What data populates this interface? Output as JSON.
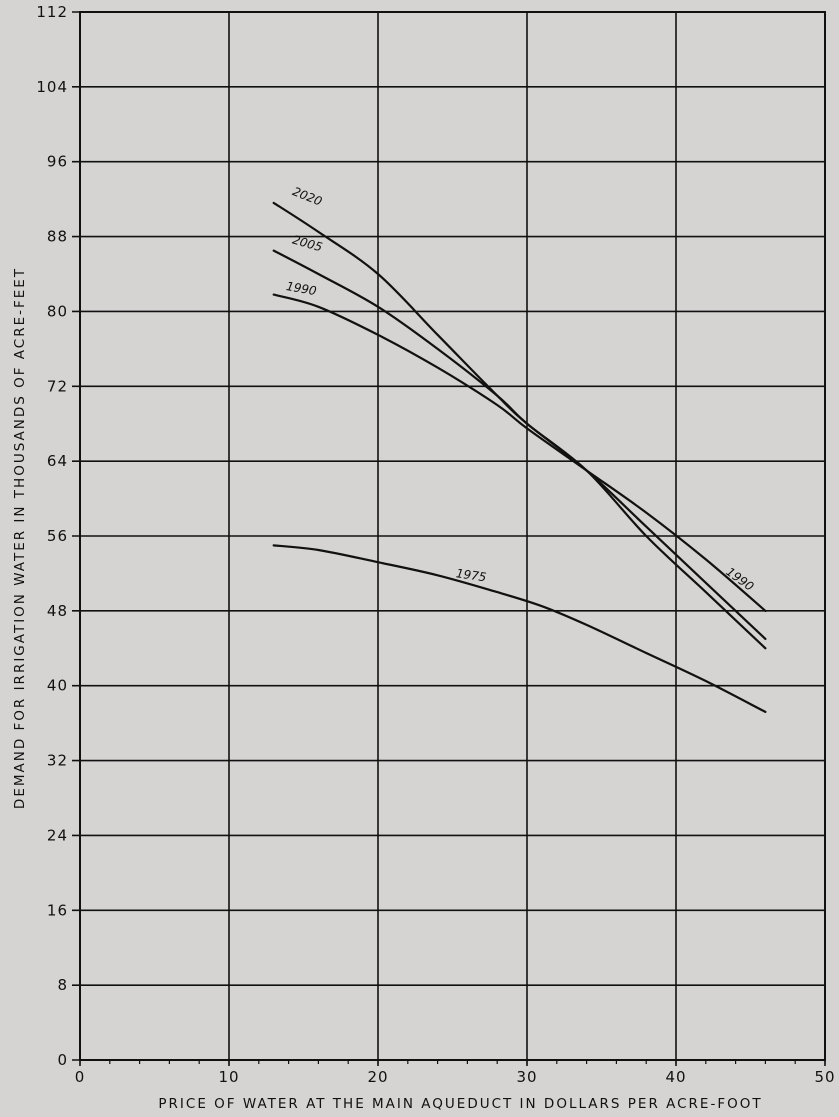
{
  "colors": {
    "background": "#d5d4d2",
    "ink": "#111111"
  },
  "chart_data": {
    "type": "line",
    "title": "",
    "xlabel": "PRICE OF WATER AT THE MAIN AQUEDUCT IN DOLLARS PER ACRE-FOOT",
    "ylabel": "DEMAND FOR IRRIGATION WATER IN THOUSANDS OF ACRE-FEET",
    "xlim": [
      0,
      50
    ],
    "ylim": [
      0,
      112
    ],
    "xticks": [
      0,
      10,
      20,
      30,
      40,
      50
    ],
    "xtick_labels": [
      "0",
      "10",
      "20",
      "30",
      "40",
      "50"
    ],
    "yticks": [
      0,
      8,
      16,
      24,
      32,
      40,
      48,
      56,
      64,
      72,
      80,
      88,
      96,
      104,
      112
    ],
    "ytick_labels": [
      "0",
      "8",
      "16",
      "24",
      "32",
      "40",
      "48",
      "56",
      "64",
      "72",
      "80",
      "88",
      "96",
      "104",
      "112"
    ],
    "grid": true,
    "legend": "none",
    "series": [
      {
        "name": "2020",
        "x": [
          13,
          16,
          20,
          24,
          28,
          30,
          34,
          38,
          42,
          46
        ],
        "values": [
          91.6,
          88.5,
          84,
          77.5,
          71,
          68,
          63,
          56,
          50,
          44
        ]
      },
      {
        "name": "2005",
        "x": [
          13,
          16,
          20,
          24,
          28,
          30,
          34,
          38,
          42,
          46
        ],
        "values": [
          86.5,
          84,
          80.5,
          76,
          71,
          68,
          63,
          57,
          51,
          45
        ]
      },
      {
        "name": "1990",
        "x": [
          13,
          16,
          20,
          24,
          28,
          30,
          34,
          38,
          42,
          46
        ],
        "values": [
          81.8,
          80.5,
          77.5,
          74,
          70,
          67.5,
          63,
          58.5,
          53.5,
          48
        ]
      },
      {
        "name": "1975",
        "x": [
          13,
          16,
          20,
          24,
          28,
          31,
          34,
          38,
          42,
          46
        ],
        "values": [
          55,
          54.5,
          53.2,
          51.8,
          50,
          48.5,
          46.5,
          43.5,
          40.5,
          37.2
        ]
      }
    ],
    "annotations": [
      {
        "text": "2020",
        "x": 14.2,
        "y": 92.5,
        "angle": 22
      },
      {
        "text": "2005",
        "x": 14.2,
        "y": 87.3,
        "angle": 16
      },
      {
        "text": "1990",
        "x": 13.8,
        "y": 82.3,
        "angle": 10
      },
      {
        "text": "1975",
        "x": 25.2,
        "y": 51.6,
        "angle": 8
      },
      {
        "text": "1990",
        "x": 43.3,
        "y": 52,
        "angle": 36
      }
    ]
  }
}
